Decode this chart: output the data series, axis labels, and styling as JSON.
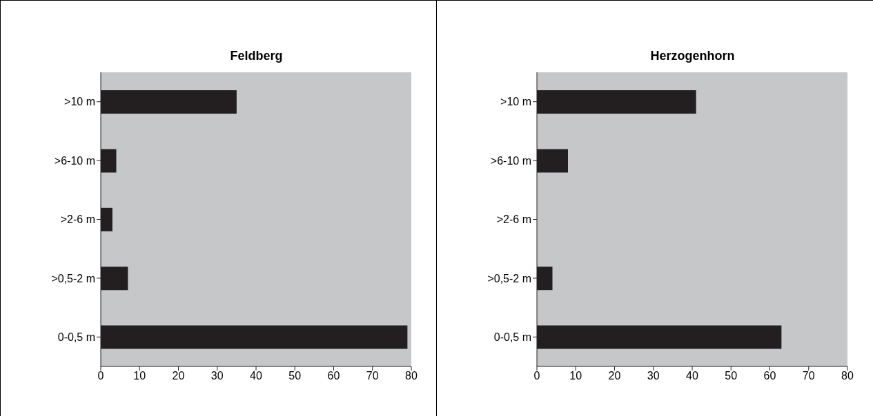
{
  "chart_data": [
    {
      "type": "bar",
      "orientation": "horizontal",
      "title": "Feldberg",
      "categories": [
        ">10 m",
        ">6-10 m",
        ">2-6 m",
        ">0,5-2 m",
        "0-0,5 m"
      ],
      "values": [
        35,
        4,
        3,
        7,
        79
      ],
      "color": "#231f20",
      "xlim": [
        0,
        80
      ],
      "xticks": [
        0,
        10,
        20,
        30,
        40,
        50,
        60,
        70,
        80
      ]
    },
    {
      "type": "bar",
      "orientation": "horizontal",
      "title": "Herzogenhorn",
      "categories": [
        ">10 m",
        ">6-10 m",
        ">2-6 m",
        ">0,5-2 m",
        "0-0,5 m"
      ],
      "values": [
        41,
        8,
        0,
        4,
        63
      ],
      "color": "#231f20",
      "xlim": [
        0,
        80
      ],
      "xticks": [
        0,
        10,
        20,
        30,
        40,
        50,
        60,
        70,
        80
      ]
    }
  ]
}
